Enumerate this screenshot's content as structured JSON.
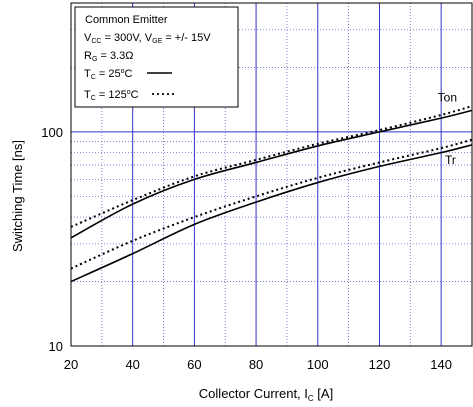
{
  "chart_data": {
    "type": "line",
    "xlabel": {
      "main": "Collector Current, I",
      "sub": "C",
      "unit": " [A]"
    },
    "ylabel": "Switching Time [ns]",
    "xlim": [
      20,
      150
    ],
    "ylim": [
      10,
      400
    ],
    "yscale": "log",
    "grid": true,
    "x_major_ticks": [
      20,
      40,
      60,
      80,
      100,
      120,
      140
    ],
    "x_tick_labels": [
      "20",
      "40",
      "60",
      "80",
      "100",
      "120",
      "140"
    ],
    "y_major_ticks": [
      10,
      100
    ],
    "y_tick_labels": [
      "10",
      "100"
    ],
    "legend": {
      "position": "top-left",
      "title": "Common Emitter",
      "line2": {
        "p1": "V",
        "s1": "CC",
        "p2": " = 300V, V",
        "s2": "GE",
        "p3": " = +/- 15V"
      },
      "line3": {
        "p1": "R",
        "s1": "G",
        "p2": " = 3.3Ω"
      },
      "solid_entry": {
        "p1": "T",
        "s1": "C",
        "p2": " = 25",
        "sup": "o",
        "p3": "C"
      },
      "dotted_entry": {
        "p1": "T",
        "s1": "C",
        "p2": " = 125",
        "sup": "o",
        "p3": "C"
      }
    },
    "series": [
      {
        "name": "Ton",
        "style": "solid",
        "x": [
          20,
          40,
          60,
          80,
          100,
          120,
          140,
          150
        ],
        "y": [
          32,
          46,
          60,
          72,
          86,
          100,
          116,
          126
        ]
      },
      {
        "name": "",
        "style": "dotted",
        "x": [
          20,
          40,
          60,
          80,
          100,
          120,
          140,
          150
        ],
        "y": [
          36,
          48,
          62,
          74,
          88,
          102,
          120,
          132
        ]
      },
      {
        "name": "Tr",
        "style": "solid",
        "x": [
          20,
          40,
          60,
          80,
          100,
          120,
          140,
          150
        ],
        "y": [
          20,
          27,
          37,
          47,
          58,
          69,
          80,
          87
        ]
      },
      {
        "name": "",
        "style": "dotted",
        "x": [
          20,
          40,
          60,
          80,
          100,
          120,
          140,
          150
        ],
        "y": [
          23,
          31,
          40,
          50,
          61,
          72,
          84,
          92
        ]
      }
    ],
    "series_labels": [
      {
        "text": "Ton",
        "x": 142,
        "y": 145
      },
      {
        "text": "Tr",
        "x": 143,
        "y": 74
      }
    ],
    "colors": {
      "major_grid": "#3333cc",
      "minor_grid": "#6666cc",
      "curve": "#000000",
      "frame": "#000000"
    }
  }
}
